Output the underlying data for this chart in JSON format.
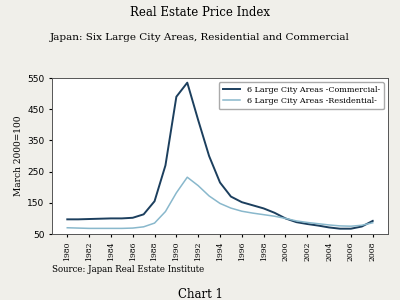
{
  "title_line1": "Real Estate Price Index",
  "title_line2": "Japan: Six Large City Areas, Residential and Commercial",
  "ylabel": "March 2000=100",
  "source_text": "Source: Japan Real Estate Institute",
  "chart_label": "Chart 1",
  "legend_commercial": "6 Large City Areas -Commercial-",
  "legend_residential": "6 Large City Areas -Residential-",
  "color_commercial": "#1c3f5e",
  "color_residential": "#89b8cc",
  "ylim": [
    50,
    550
  ],
  "yticks": [
    50,
    150,
    250,
    350,
    450,
    550
  ],
  "years": [
    1980,
    1981,
    1982,
    1983,
    1984,
    1985,
    1986,
    1987,
    1988,
    1989,
    1990,
    1991,
    1992,
    1993,
    1994,
    1995,
    1996,
    1997,
    1998,
    1999,
    2000,
    2001,
    2002,
    2003,
    2004,
    2005,
    2006,
    2007,
    2008
  ],
  "commercial": [
    97,
    97,
    98,
    99,
    100,
    100,
    102,
    113,
    155,
    270,
    490,
    535,
    415,
    300,
    215,
    170,
    152,
    142,
    132,
    118,
    100,
    88,
    82,
    77,
    71,
    67,
    67,
    74,
    92
  ],
  "residential": [
    70,
    69,
    68,
    68,
    68,
    68,
    69,
    73,
    85,
    122,
    182,
    232,
    205,
    172,
    148,
    133,
    123,
    117,
    112,
    107,
    100,
    92,
    87,
    83,
    79,
    76,
    75,
    78,
    86
  ],
  "xtick_years": [
    1980,
    1982,
    1984,
    1986,
    1988,
    1990,
    1992,
    1994,
    1996,
    1998,
    2000,
    2002,
    2004,
    2006,
    2008
  ],
  "background_color": "#f0efea",
  "plot_bg_color": "#ffffff"
}
